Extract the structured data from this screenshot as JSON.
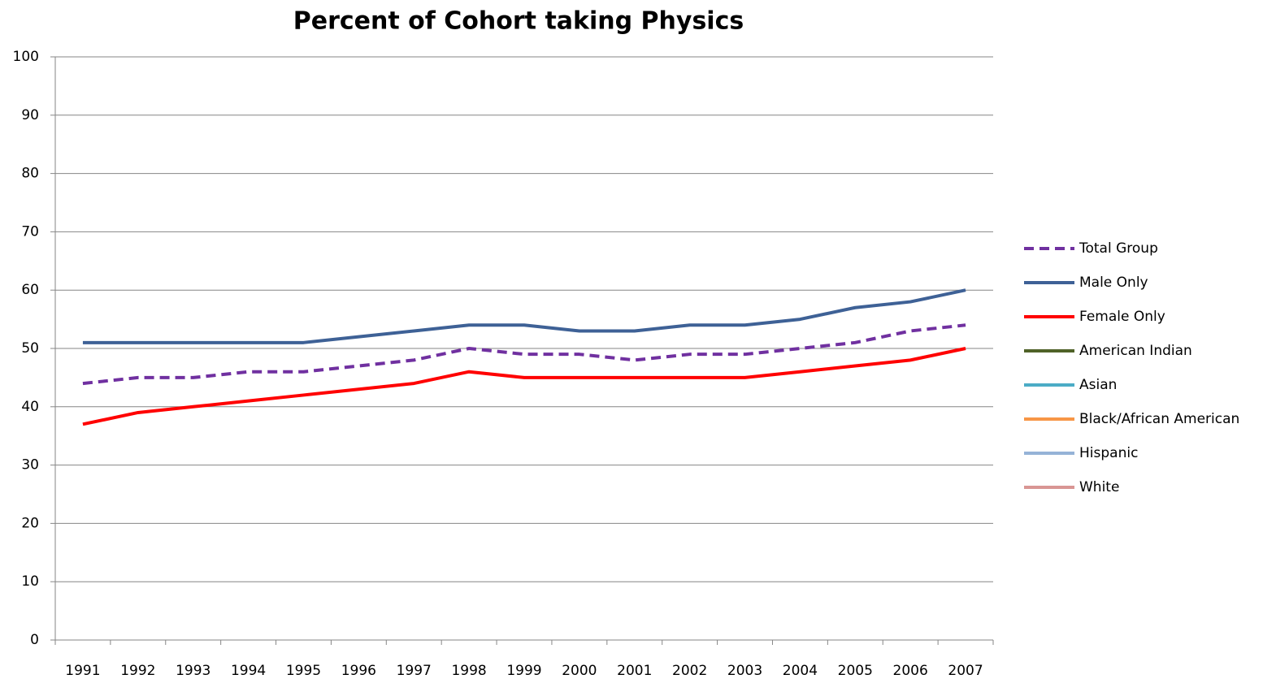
{
  "chart_data": {
    "type": "line",
    "title": "Percent of Cohort taking Physics",
    "categories": [
      "1991",
      "1992",
      "1993",
      "1994",
      "1995",
      "1996",
      "1997",
      "1998",
      "1999",
      "2000",
      "2001",
      "2002",
      "2003",
      "2004",
      "2005",
      "2006",
      "2007"
    ],
    "series": [
      {
        "name": "Total Group",
        "color": "#7030a0",
        "style": "dashed",
        "values": [
          44,
          45,
          45,
          46,
          46,
          47,
          48,
          50,
          49,
          49,
          48,
          49,
          49,
          50,
          51,
          53,
          54
        ]
      },
      {
        "name": "Male Only",
        "color": "#3e6196",
        "style": "solid",
        "values": [
          51,
          51,
          51,
          51,
          51,
          52,
          53,
          54,
          54,
          53,
          53,
          54,
          54,
          55,
          57,
          58,
          60
        ]
      },
      {
        "name": "Female Only",
        "color": "#ff0000",
        "style": "solid",
        "values": [
          37,
          39,
          40,
          41,
          42,
          43,
          44,
          46,
          45,
          45,
          45,
          45,
          45,
          46,
          47,
          48,
          50
        ]
      },
      {
        "name": "American Indian",
        "color": "#4f6228",
        "style": "solid",
        "values": [
          null,
          null,
          null,
          null,
          null,
          null,
          null,
          null,
          null,
          null,
          null,
          null,
          null,
          null,
          null,
          null,
          null
        ]
      },
      {
        "name": "Asian",
        "color": "#4bacc6",
        "style": "solid",
        "values": [
          null,
          null,
          null,
          null,
          null,
          null,
          null,
          null,
          null,
          null,
          null,
          null,
          null,
          null,
          null,
          null,
          null
        ]
      },
      {
        "name": "Black/African American",
        "color": "#f79646",
        "style": "solid",
        "values": [
          null,
          null,
          null,
          null,
          null,
          null,
          null,
          null,
          null,
          null,
          null,
          null,
          null,
          null,
          null,
          null,
          null
        ]
      },
      {
        "name": "Hispanic",
        "color": "#95b3d7",
        "style": "solid",
        "values": [
          null,
          null,
          null,
          null,
          null,
          null,
          null,
          null,
          null,
          null,
          null,
          null,
          null,
          null,
          null,
          null,
          null
        ]
      },
      {
        "name": "White",
        "color": "#d99694",
        "style": "solid",
        "values": [
          null,
          null,
          null,
          null,
          null,
          null,
          null,
          null,
          null,
          null,
          null,
          null,
          null,
          null,
          null,
          null,
          null
        ]
      }
    ],
    "ylim": [
      0,
      100
    ],
    "yticks": [
      0,
      10,
      20,
      30,
      40,
      50,
      60,
      70,
      80,
      90,
      100
    ],
    "grid": true,
    "legend": "right"
  }
}
